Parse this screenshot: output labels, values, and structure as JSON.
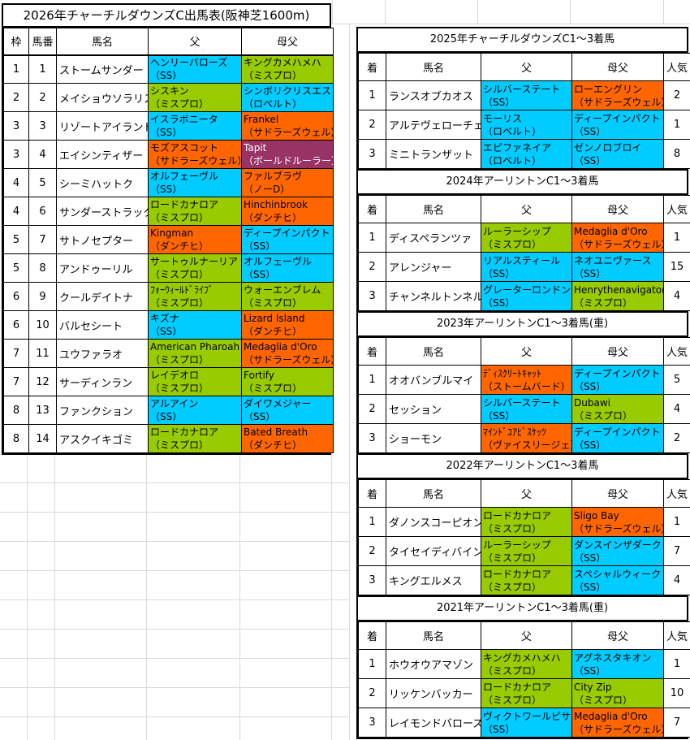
{
  "colors": {
    "cyan": "#00CCFF",
    "green": "#99CC00",
    "orange": "#FF6600",
    "plum": "#993366"
  },
  "entry_table": {
    "title": "2026年チャーチルダウンズC出馬表(阪神芝1600m)",
    "headers": [
      "枠",
      "馬番",
      "馬名",
      "父",
      "母父"
    ],
    "rows": [
      {
        "waku": "1",
        "num": "1",
        "name": "ストームサンダー",
        "sire": {
          "name": "ヘンリーバローズ",
          "line": "（SS）",
          "color": "cyan"
        },
        "damsire": {
          "name": "キングカメハメハ",
          "line": "（ミスプロ）",
          "color": "green"
        }
      },
      {
        "waku": "2",
        "num": "2",
        "name": "メイショウソラリス",
        "sire": {
          "name": "シスキン",
          "line": "（ミスプロ）",
          "color": "green"
        },
        "damsire": {
          "name": "シンボリクリスエス",
          "line": "（ロベルト）",
          "color": "cyan"
        }
      },
      {
        "waku": "3",
        "num": "3",
        "name": "リゾートアイランド",
        "sire": {
          "name": "イスラボニータ",
          "line": "（SS）",
          "color": "cyan"
        },
        "damsire": {
          "name": "Frankel",
          "line": "（サドラーズウェル）",
          "color": "orange"
        }
      },
      {
        "waku": "3",
        "num": "4",
        "name": "エイシンティザー",
        "sire": {
          "name": "モズアスコット",
          "line": "（サドラーズウェル）",
          "color": "orange"
        },
        "damsire": {
          "name": "Tapit",
          "line": "（ボールドルーラー）",
          "color": "plum"
        }
      },
      {
        "waku": "4",
        "num": "5",
        "name": "シーミハットク",
        "sire": {
          "name": "オルフェーヴル",
          "line": "（SS）",
          "color": "cyan"
        },
        "damsire": {
          "name": "ファルブラヴ",
          "line": "（ノーD）",
          "color": "orange"
        }
      },
      {
        "waku": "4",
        "num": "6",
        "name": "サンダーストラック",
        "sire": {
          "name": "ロードカナロア",
          "line": "（ミスプロ）",
          "color": "green"
        },
        "damsire": {
          "name": "Hinchinbrook",
          "line": "（ダンチヒ）",
          "color": "orange"
        }
      },
      {
        "waku": "5",
        "num": "7",
        "name": "サトノセプター",
        "sire": {
          "name": "Kingman",
          "line": "（ダンチヒ）",
          "color": "orange"
        },
        "damsire": {
          "name": "ディープインパクト",
          "line": "（SS）",
          "color": "cyan"
        }
      },
      {
        "waku": "5",
        "num": "8",
        "name": "アンドゥーリル",
        "sire": {
          "name": "サートゥルナーリア",
          "line": "（ミスプロ）",
          "color": "green"
        },
        "damsire": {
          "name": "オルフェーヴル",
          "line": "（SS）",
          "color": "cyan"
        }
      },
      {
        "waku": "6",
        "num": "9",
        "name": "クールデイトナ",
        "sire": {
          "name": "ﾌｫｰｳｨｰﾙﾄﾞﾗｲﾌﾞ",
          "line": "（ミスプロ）",
          "color": "green"
        },
        "damsire": {
          "name": "ウォーエンブレム",
          "line": "（ミスプロ）",
          "color": "green"
        }
      },
      {
        "waku": "6",
        "num": "10",
        "name": "バルセシート",
        "sire": {
          "name": "キズナ",
          "line": "（SS）",
          "color": "cyan"
        },
        "damsire": {
          "name": "Lizard Island",
          "line": "（ダンチヒ）",
          "color": "orange"
        }
      },
      {
        "waku": "7",
        "num": "11",
        "name": "ユウファラオ",
        "sire": {
          "name": "American Pharoah",
          "line": "（ミスプロ）",
          "color": "green"
        },
        "damsire": {
          "name": "Medaglia d'Oro",
          "line": "（サドラーズウェル）",
          "color": "orange"
        }
      },
      {
        "waku": "7",
        "num": "12",
        "name": "サーディンラン",
        "sire": {
          "name": "レイデオロ",
          "line": "（ミスプロ）",
          "color": "green"
        },
        "damsire": {
          "name": "Fortify",
          "line": "（ミスプロ）",
          "color": "green"
        }
      },
      {
        "waku": "8",
        "num": "13",
        "name": "ファンクション",
        "sire": {
          "name": "アルアイン",
          "line": "（SS）",
          "color": "cyan"
        },
        "damsire": {
          "name": "ダイワメジャー",
          "line": "（SS）",
          "color": "cyan"
        }
      },
      {
        "waku": "8",
        "num": "14",
        "name": "アスクイキゴミ",
        "sire": {
          "name": "ロードカナロア",
          "line": "（ミスプロ）",
          "color": "green"
        },
        "damsire": {
          "name": "Bated Breath",
          "line": "（ダンチヒ）",
          "color": "orange"
        }
      }
    ]
  },
  "result_tables": [
    {
      "title": "2025年チャーチルダウンズC1～3着馬",
      "headers": [
        "着",
        "馬名",
        "父",
        "母父",
        "人気"
      ],
      "rows": [
        {
          "pos": "1",
          "name": "ランスオブカオス",
          "sire": {
            "name": "シルバーステート",
            "line": "（SS）",
            "color": "cyan"
          },
          "damsire": {
            "name": "ローエングリン",
            "line": "（サドラーズウェル）",
            "color": "orange"
          },
          "pop": "2"
        },
        {
          "pos": "2",
          "name": "アルテヴェローチェ",
          "sire": {
            "name": "モーリス",
            "line": "（ロベルト）",
            "color": "cyan"
          },
          "damsire": {
            "name": "ディープインパクト",
            "line": "（SS）",
            "color": "cyan"
          },
          "pop": "1"
        },
        {
          "pos": "3",
          "name": "ミニトランザット",
          "sire": {
            "name": "エピファネイア",
            "line": "（ロベルト）",
            "color": "cyan"
          },
          "damsire": {
            "name": "ゼンノロブロイ",
            "line": "（SS）",
            "color": "cyan"
          },
          "pop": "8"
        }
      ]
    },
    {
      "title": "2024年アーリントンC1～3着馬",
      "headers": [
        "着",
        "馬名",
        "父",
        "母父",
        "人気"
      ],
      "rows": [
        {
          "pos": "1",
          "name": "ディスペランツァ",
          "sire": {
            "name": "ルーラーシップ",
            "line": "（ミスプロ）",
            "color": "green"
          },
          "damsire": {
            "name": "Medaglia d'Oro",
            "line": "（サドラーズウェル）",
            "color": "orange"
          },
          "pop": "1"
        },
        {
          "pos": "2",
          "name": "アレンジャー",
          "sire": {
            "name": "リアルスティール",
            "line": "（SS）",
            "color": "cyan"
          },
          "damsire": {
            "name": "ネオユニヴァース",
            "line": "（SS）",
            "color": "cyan"
          },
          "pop": "15"
        },
        {
          "pos": "3",
          "name": "チャンネルトンネル",
          "sire": {
            "name": "グレーターロンドン",
            "line": "（SS）",
            "color": "cyan"
          },
          "damsire": {
            "name": "Henrythenavigator",
            "line": "（ミスプロ）",
            "color": "green"
          },
          "pop": "4"
        }
      ]
    },
    {
      "title": "2023年アーリントンC1～3着馬(重)",
      "headers": [
        "着",
        "馬名",
        "父",
        "母父",
        "人気"
      ],
      "rows": [
        {
          "pos": "1",
          "name": "オオバンブルマイ",
          "sire": {
            "name": "ﾃﾞｨｽｸﾘｰﾄｷｬｯﾄ",
            "line": "（ストームバード）",
            "color": "orange"
          },
          "damsire": {
            "name": "ディープインパクト",
            "line": "（SS）",
            "color": "cyan"
          },
          "pop": "5"
        },
        {
          "pos": "2",
          "name": "セッション",
          "sire": {
            "name": "シルバーステート",
            "line": "（SS）",
            "color": "cyan"
          },
          "damsire": {
            "name": "Dubawi",
            "line": "（ミスプロ）",
            "color": "green"
          },
          "pop": "4"
        },
        {
          "pos": "3",
          "name": "ショーモン",
          "sire": {
            "name": "ﾏｲﾝﾄﾞﾕｱﾋﾞｽｹｯﾂ",
            "line": "（ヴァイスリージェ）",
            "color": "orange"
          },
          "damsire": {
            "name": "ディープインパクト",
            "line": "（SS）",
            "color": "cyan"
          },
          "pop": "2"
        }
      ]
    },
    {
      "title": "2022年アーリントンC1～3着馬",
      "headers": [
        "着",
        "馬名",
        "父",
        "母父",
        "人気"
      ],
      "rows": [
        {
          "pos": "1",
          "name": "ダノンスコーピオン",
          "sire": {
            "name": "ロードカナロア",
            "line": "（ミスプロ）",
            "color": "green"
          },
          "damsire": {
            "name": "Sligo Bay",
            "line": "（サドラーズウェル）",
            "color": "orange"
          },
          "pop": "1"
        },
        {
          "pos": "2",
          "name": "タイセイディバイン",
          "sire": {
            "name": "ルーラーシップ",
            "line": "（ミスプロ）",
            "color": "green"
          },
          "damsire": {
            "name": "ダンスインザダーク",
            "line": "（SS）",
            "color": "cyan"
          },
          "pop": "7"
        },
        {
          "pos": "3",
          "name": "キングエルメス",
          "sire": {
            "name": "ロードカナロア",
            "line": "（ミスプロ）",
            "color": "green"
          },
          "damsire": {
            "name": "スペシャルウィーク",
            "line": "（SS）",
            "color": "cyan"
          },
          "pop": "4"
        }
      ]
    },
    {
      "title": "2021年アーリントンC1～3着馬(重)",
      "headers": [
        "着",
        "馬名",
        "父",
        "母父",
        "人気"
      ],
      "rows": [
        {
          "pos": "1",
          "name": "ホウオウアマゾン",
          "sire": {
            "name": "キングカメハメハ",
            "line": "（ミスプロ）",
            "color": "green"
          },
          "damsire": {
            "name": "アグネスタキオン",
            "line": "（SS）",
            "color": "cyan"
          },
          "pop": "1"
        },
        {
          "pos": "2",
          "name": "リッケンバッカー",
          "sire": {
            "name": "ロードカナロア",
            "line": "（ミスプロ）",
            "color": "green"
          },
          "damsire": {
            "name": "City Zip",
            "line": "（ミスプロ）",
            "color": "green"
          },
          "pop": "10"
        },
        {
          "pos": "3",
          "name": "レイモンドバローズ",
          "sire": {
            "name": "ヴィクトワールピサ",
            "line": "（SS）",
            "color": "cyan"
          },
          "damsire": {
            "name": "Medaglia d'Oro",
            "line": "（サドラーズウェル）",
            "color": "orange"
          },
          "pop": "7"
        }
      ]
    }
  ]
}
